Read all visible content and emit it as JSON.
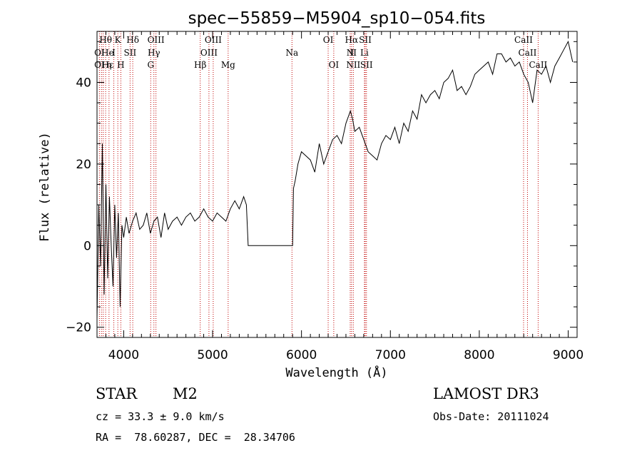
{
  "chart_data": {
    "type": "line",
    "title": "spec−55859−M5904_sp10−054.fits",
    "xlabel": "Wavelength (Å)",
    "ylabel": "Flux (relative)",
    "xlim": [
      3700,
      9100
    ],
    "ylim": [
      -22.5,
      52.5
    ],
    "xticks": [
      4000,
      5000,
      6000,
      7000,
      8000,
      9000
    ],
    "yticks": [
      -20,
      0,
      20,
      40
    ],
    "series": [
      {
        "x": [
          3700,
          3720,
          3740,
          3760,
          3780,
          3800,
          3820,
          3840,
          3860,
          3880,
          3900,
          3920,
          3940,
          3960,
          3980,
          4000,
          4030,
          4060,
          4100,
          4140,
          4180,
          4220,
          4260,
          4300,
          4340,
          4380,
          4420,
          4460,
          4500,
          4550,
          4600,
          4650,
          4700,
          4750,
          4800,
          4850,
          4900,
          4950,
          5000,
          5050,
          5100,
          5150,
          5200,
          5250,
          5300,
          5350,
          5380,
          5400,
          5410,
          5900,
          5910,
          5930,
          5960,
          6000,
          6050,
          6100,
          6150,
          6200,
          6250,
          6300,
          6350,
          6400,
          6450,
          6500,
          6550,
          6575,
          6600,
          6650,
          6700,
          6750,
          6800,
          6850,
          6900,
          6950,
          7000,
          7050,
          7100,
          7150,
          7200,
          7250,
          7300,
          7350,
          7400,
          7450,
          7500,
          7550,
          7600,
          7650,
          7700,
          7750,
          7800,
          7850,
          7900,
          7950,
          8000,
          8050,
          8100,
          8150,
          8200,
          8250,
          8300,
          8350,
          8400,
          8450,
          8500,
          8550,
          8600,
          8650,
          8700,
          8750,
          8800,
          8850,
          8900,
          8950,
          9000,
          9050
        ],
        "y": [
          -18,
          10,
          -5,
          25,
          -12,
          15,
          -8,
          12,
          0,
          -10,
          10,
          -3,
          8,
          -15,
          5,
          2,
          7,
          3,
          6,
          8,
          4,
          5,
          8,
          3,
          6,
          7,
          2,
          8,
          4,
          6,
          7,
          5,
          7,
          8,
          6,
          7,
          9,
          7,
          6,
          8,
          7,
          6,
          9,
          11,
          9,
          12,
          10,
          0,
          0,
          0,
          14,
          16,
          20,
          23,
          22,
          21,
          18,
          25,
          20,
          23,
          26,
          27,
          25,
          30,
          33,
          31,
          28,
          29,
          26,
          23,
          22,
          21,
          25,
          27,
          26,
          29,
          25,
          30,
          28,
          33,
          31,
          37,
          35,
          37,
          38,
          36,
          40,
          41,
          43,
          38,
          39,
          37,
          39,
          42,
          43,
          44,
          45,
          42,
          47,
          47,
          45,
          46,
          44,
          45,
          42,
          40,
          35,
          43,
          42,
          44,
          40,
          44,
          46,
          48,
          50,
          45
        ]
      }
    ],
    "line_ids": [
      {
        "label": "Hθ",
        "row": 0,
        "w": 3797
      },
      {
        "label": "K",
        "row": 0,
        "w": 3934
      },
      {
        "label": "Hδ",
        "row": 0,
        "w": 4102
      },
      {
        "label": "OIII",
        "row": 0,
        "w": 4363
      },
      {
        "label": "OIII",
        "row": 0,
        "w": 5007
      },
      {
        "label": "OI",
        "row": 0,
        "w": 6300
      },
      {
        "label": "Hα",
        "row": 0,
        "w": 6563
      },
      {
        "label": "SII",
        "row": 0,
        "w": 6717
      },
      {
        "label": "CaII",
        "row": 0,
        "w": 8498
      },
      {
        "label": "OI",
        "row": 1,
        "w": 3727
      },
      {
        "label": "He",
        "row": 1,
        "w": 3820
      },
      {
        "label": "I",
        "row": 1,
        "w": 3889
      },
      {
        "label": "SII",
        "row": 1,
        "w": 4072
      },
      {
        "label": "Hγ",
        "row": 1,
        "w": 4340
      },
      {
        "label": "OIII",
        "row": 1,
        "w": 4959
      },
      {
        "label": "Na",
        "row": 1,
        "w": 5893
      },
      {
        "label": "N",
        "row": 1,
        "w": 6548
      },
      {
        "label": "II",
        "row": 1,
        "w": 6583
      },
      {
        "label": "Li",
        "row": 1,
        "w": 6708
      },
      {
        "label": "CaII",
        "row": 1,
        "w": 8542
      },
      {
        "label": "OI",
        "row": 2,
        "w": 3727
      },
      {
        "label": "Hε",
        "row": 2,
        "w": 3820
      },
      {
        "label": "η",
        "row": 2,
        "w": 3835
      },
      {
        "label": "H",
        "row": 2,
        "w": 3968
      },
      {
        "label": "G",
        "row": 2,
        "w": 4304
      },
      {
        "label": "Hβ",
        "row": 2,
        "w": 4861
      },
      {
        "label": "Mg",
        "row": 2,
        "w": 5175
      },
      {
        "label": "OI",
        "row": 2,
        "w": 6363
      },
      {
        "label": "NII",
        "row": 2,
        "w": 6583
      },
      {
        "label": "SII",
        "row": 2,
        "w": 6731
      },
      {
        "label": "CaII",
        "row": 2,
        "w": 8662
      }
    ],
    "marker_lines": [
      3727,
      3750,
      3770,
      3797,
      3835,
      3889,
      3934,
      3968,
      4072,
      4102,
      4304,
      4340,
      4363,
      4861,
      4959,
      5007,
      5175,
      5893,
      6300,
      6363,
      6548,
      6563,
      6583,
      6708,
      6717,
      6731,
      8498,
      8542,
      8662
    ],
    "marker_color": "#c00000",
    "grid": false
  },
  "info": {
    "object_class": "STAR",
    "subclass": "M2",
    "survey": "LAMOST DR3",
    "cz": "cz = 33.3 ± 9.0 km/s",
    "obs_date": "Obs-Date: 20111024",
    "coords": "RA =  78.60287, DEC =  28.34706"
  }
}
